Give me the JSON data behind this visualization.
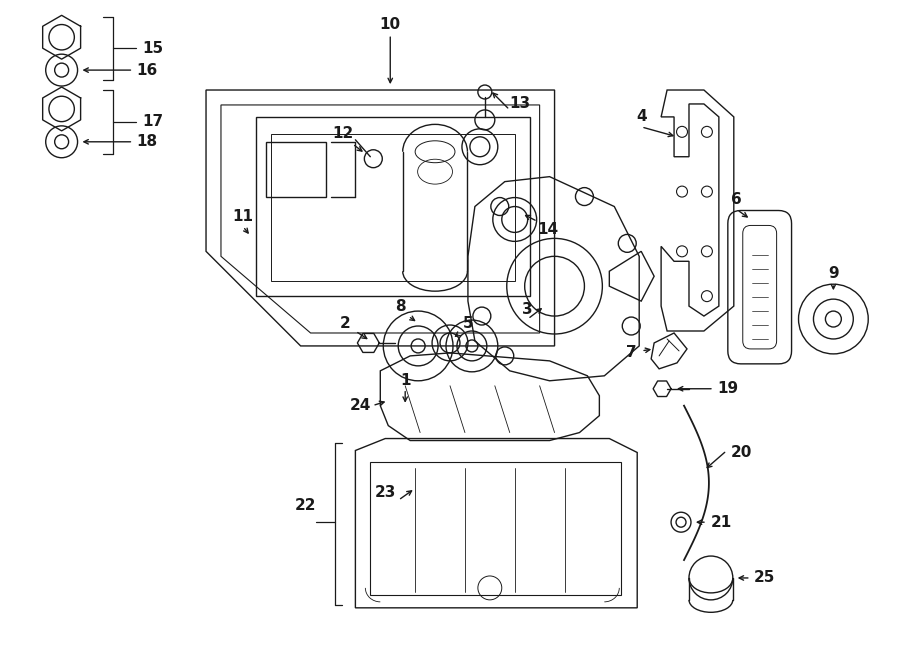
{
  "bg_color": "#ffffff",
  "line_color": "#1a1a1a",
  "fig_width": 9.0,
  "fig_height": 6.61,
  "dpi": 100,
  "label_fs": 11,
  "lw": 1.0
}
